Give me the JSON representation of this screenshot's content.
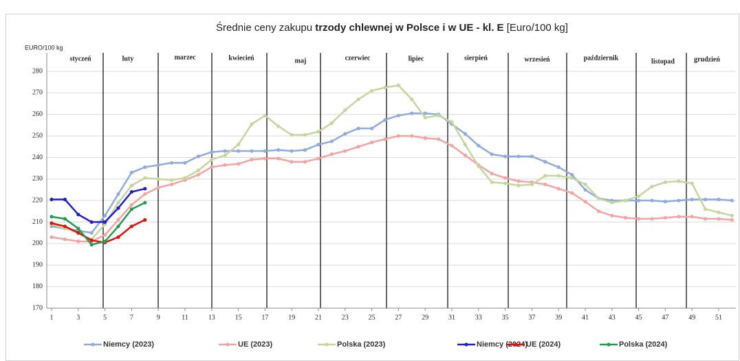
{
  "chart_data": {
    "type": "line",
    "title_parts": [
      "Średnie ceny zakupu ",
      "trzody chlewnej w Polsce i w UE - kl. E",
      " [Euro/100 kg]"
    ],
    "y_label": "EURO/100 kg",
    "months": [
      "styczeń",
      "luty",
      "marzec",
      "kwiecień",
      "maj",
      "czerwiec",
      "lipiec",
      "sierpień",
      "wrzesień",
      "październik",
      "listopad",
      "grudzień"
    ],
    "x": [
      1,
      2,
      3,
      4,
      5,
      6,
      7,
      8,
      9,
      10,
      11,
      12,
      13,
      14,
      15,
      16,
      17,
      18,
      19,
      20,
      21,
      22,
      23,
      24,
      25,
      26,
      27,
      28,
      29,
      30,
      31,
      32,
      33,
      34,
      35,
      36,
      37,
      38,
      39,
      40,
      41,
      42,
      43,
      44,
      45,
      46,
      47,
      48,
      49,
      50,
      51,
      52
    ],
    "xlim": [
      1,
      52
    ],
    "xticks": [
      1,
      3,
      5,
      7,
      9,
      11,
      13,
      15,
      17,
      19,
      21,
      23,
      25,
      27,
      29,
      31,
      33,
      35,
      37,
      39,
      41,
      43,
      45,
      47,
      49,
      51
    ],
    "ylim": [
      170,
      280
    ],
    "yticks": [
      170,
      180,
      190,
      200,
      210,
      220,
      230,
      240,
      250,
      260,
      270,
      280
    ],
    "grid": true,
    "series": [
      {
        "name": "Niemcy (2023)",
        "color": "#8faadc",
        "values": [
          208,
          207,
          206,
          205,
          213,
          223,
          233,
          235.5,
          236.5,
          237.5,
          237.5,
          240.5,
          242.5,
          243,
          243,
          243,
          243,
          243.5,
          243,
          243.5,
          246,
          247.5,
          251,
          253.5,
          253.5,
          257.5,
          259.5,
          260.5,
          260.5,
          260,
          255.5,
          251,
          245.5,
          241.5,
          240.5,
          240.5,
          240.5,
          238,
          235.5,
          232,
          225,
          221,
          220,
          220,
          220,
          220,
          219.5,
          220,
          220.5,
          220.5,
          220.5,
          220
        ]
      },
      {
        "name": "UE (2023)",
        "color": "#f4a3a3",
        "values": [
          203,
          202,
          201,
          201,
          204,
          211,
          218,
          223,
          226,
          227.5,
          229.5,
          232,
          235.5,
          236.5,
          237,
          239,
          239.5,
          239.5,
          238,
          238,
          239.5,
          241.5,
          243,
          245,
          247,
          248.5,
          250,
          250,
          249,
          248.5,
          245.5,
          241,
          236.5,
          232.5,
          230.5,
          229,
          228.5,
          227.5,
          225.5,
          223.5,
          219.5,
          215,
          213,
          212,
          211.5,
          211.5,
          212,
          212.5,
          212.5,
          211.5,
          211.5,
          211
        ]
      },
      {
        "name": "Polska (2023)",
        "color": "#c4d79b",
        "values": [
          209,
          207,
          205,
          202,
          209,
          219,
          227,
          230.5,
          230,
          229.5,
          230.5,
          234,
          239,
          241,
          246,
          255.5,
          259.5,
          254.5,
          250.5,
          250.5,
          252,
          256,
          262,
          267,
          271,
          272.5,
          273.5,
          267,
          258.5,
          259.5,
          256.5,
          246,
          236,
          228.5,
          228,
          227,
          227.5,
          231.5,
          231.5,
          230.5,
          227.5,
          221,
          219,
          220,
          222,
          226.5,
          228.5,
          229,
          228,
          216,
          214.5,
          213
        ]
      },
      {
        "name": "Niemcy (2024)",
        "color": "#1f1fd0",
        "values": [
          220.5,
          220.5,
          213.5,
          210,
          210,
          216.5,
          224,
          225.5,
          null,
          null,
          null,
          null,
          null,
          null,
          null,
          null,
          null,
          null,
          null,
          null,
          null,
          null,
          null,
          null,
          null,
          null,
          null,
          null,
          null,
          null,
          null,
          null,
          null,
          null,
          null,
          null,
          null,
          null,
          null,
          null,
          null,
          null,
          null,
          null,
          null,
          null,
          null,
          null,
          null,
          null,
          null,
          null
        ]
      },
      {
        "name": "UE (2024)",
        "color": "#e01010",
        "values": [
          209.5,
          208,
          205,
          201.5,
          200.5,
          203,
          208,
          211,
          null,
          null,
          null,
          null,
          null,
          null,
          null,
          null,
          null,
          null,
          null,
          null,
          null,
          null,
          null,
          null,
          null,
          null,
          null,
          null,
          null,
          null,
          null,
          null,
          null,
          null,
          null,
          null,
          null,
          null,
          null,
          null,
          null,
          null,
          null,
          null,
          null,
          null,
          null,
          null,
          null,
          null,
          null,
          null
        ]
      },
      {
        "name": "Polska (2024)",
        "color": "#1e9e4e",
        "values": [
          212.5,
          211.5,
          207,
          199.5,
          201,
          208,
          216,
          219,
          null,
          null,
          null,
          null,
          null,
          null,
          null,
          null,
          null,
          null,
          null,
          null,
          null,
          null,
          null,
          null,
          null,
          null,
          null,
          null,
          null,
          null,
          null,
          null,
          null,
          null,
          null,
          null,
          null,
          null,
          null,
          null,
          null,
          null,
          null,
          null,
          null,
          null,
          null,
          null,
          null,
          null,
          null,
          null
        ]
      }
    ]
  }
}
